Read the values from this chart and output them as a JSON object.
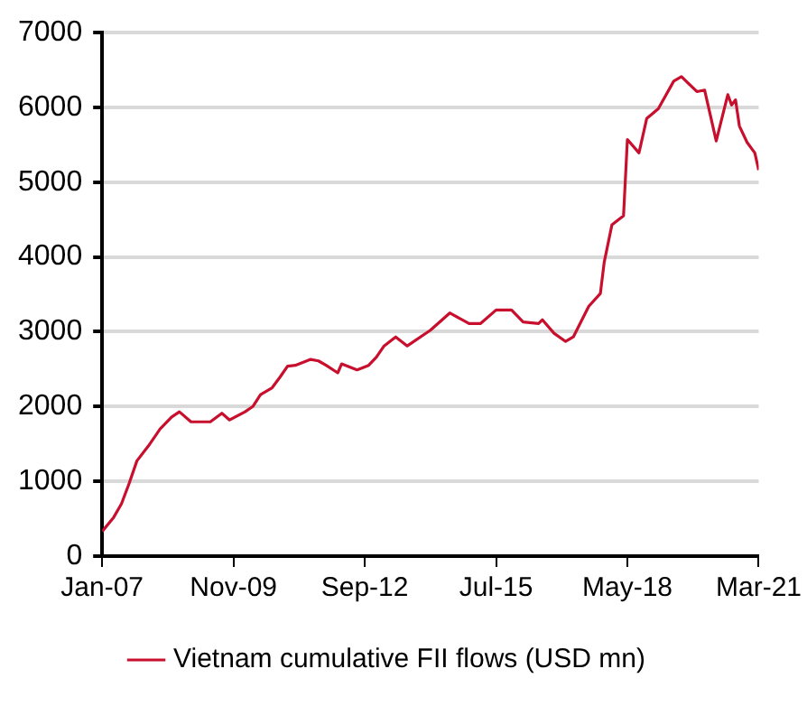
{
  "chart_data": {
    "type": "line",
    "x": [
      "2007-01",
      "2007-04",
      "2007-06",
      "2007-08",
      "2007-10",
      "2008-01",
      "2008-04",
      "2008-07",
      "2008-09",
      "2008-12",
      "2009-05",
      "2009-08",
      "2009-10",
      "2010-02",
      "2010-04",
      "2010-06",
      "2010-09",
      "2010-11",
      "2011-01",
      "2011-03",
      "2011-07",
      "2011-09",
      "2011-11",
      "2012-02",
      "2012-03",
      "2012-07",
      "2012-10",
      "2012-12",
      "2013-02",
      "2013-05",
      "2013-08",
      "2014-02",
      "2014-07",
      "2014-12",
      "2015-03",
      "2015-07",
      "2015-11",
      "2016-02",
      "2016-06",
      "2016-07",
      "2016-10",
      "2017-01",
      "2017-03",
      "2017-07",
      "2017-10",
      "2017-11",
      "2018-01",
      "2018-04",
      "2018-05",
      "2018-08",
      "2018-10",
      "2019-01",
      "2019-05",
      "2019-07",
      "2019-11",
      "2020-01",
      "2020-04",
      "2020-07",
      "2020-08",
      "2020-09",
      "2020-10",
      "2020-12",
      "2021-02",
      "2021-03"
    ],
    "series": [
      {
        "name": "Vietnam cumulative FII flows (USD mn)",
        "color": "#c8102e",
        "values": [
          330,
          520,
          700,
          975,
          1275,
          1475,
          1700,
          1860,
          1930,
          1795,
          1795,
          1910,
          1820,
          1930,
          2000,
          2160,
          2250,
          2390,
          2540,
          2550,
          2630,
          2610,
          2550,
          2450,
          2570,
          2490,
          2550,
          2660,
          2810,
          2930,
          2810,
          3020,
          3250,
          3110,
          3110,
          3290,
          3290,
          3130,
          3110,
          3160,
          2980,
          2870,
          2930,
          3340,
          3510,
          3930,
          4430,
          4550,
          5570,
          5390,
          5850,
          5980,
          6350,
          6410,
          6210,
          6230,
          5550,
          6170,
          6030,
          6100,
          5750,
          5530,
          5390,
          5160
        ]
      }
    ],
    "xlim": [
      "2007-01",
      "2021-03"
    ],
    "xticks": [
      {
        "value": "2007-01",
        "label": "Jan-07"
      },
      {
        "value": "2009-11",
        "label": "Nov-09"
      },
      {
        "value": "2012-09",
        "label": "Sep-12"
      },
      {
        "value": "2015-07",
        "label": "Jul-15"
      },
      {
        "value": "2018-05",
        "label": "May-18"
      },
      {
        "value": "2021-03",
        "label": "Mar-21"
      }
    ],
    "ylim": [
      0,
      7000
    ],
    "yticks": [
      0,
      1000,
      2000,
      3000,
      4000,
      5000,
      6000,
      7000
    ],
    "grid": "y",
    "legend": "bottom",
    "marker": "none",
    "line_style": "solid"
  }
}
